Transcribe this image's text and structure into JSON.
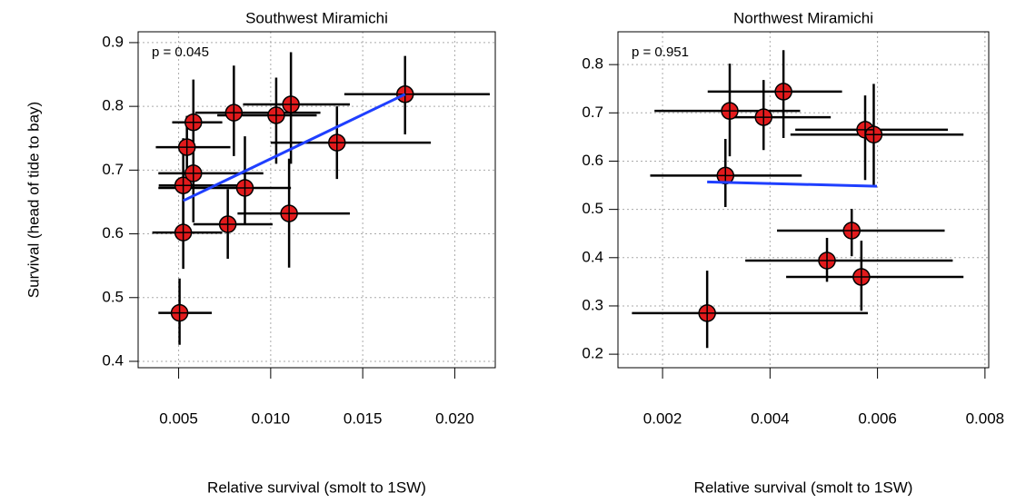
{
  "chart_data": [
    {
      "type": "scatter",
      "title": "Southwest Miramichi",
      "annotation": "p = 0.045",
      "xlabel": "Relative survival (smolt to 1SW)",
      "ylabel": "Survival (head of tide to bay)",
      "x": [
        0.00505,
        0.00525,
        0.00525,
        0.00545,
        0.0058,
        0.0058,
        0.00767,
        0.0086,
        0.008,
        0.0103,
        0.0111,
        0.011,
        0.0136,
        0.0173
      ],
      "y": [
        0.476,
        0.602,
        0.676,
        0.736,
        0.695,
        0.775,
        0.615,
        0.672,
        0.79,
        0.786,
        0.803,
        0.632,
        0.743,
        0.819
      ],
      "x_lower": [
        0.0039,
        0.00357,
        0.00392,
        0.00376,
        0.0039,
        0.00465,
        0.0058,
        0.0039,
        0.0059,
        0.0071,
        0.0085,
        0.0082,
        0.01,
        0.014
      ],
      "x_upper": [
        0.0068,
        0.00737,
        0.00837,
        0.00781,
        0.0096,
        0.00737,
        0.0101,
        0.0111,
        0.0127,
        0.0125,
        0.0143,
        0.0143,
        0.0187,
        0.0219
      ],
      "y_lower": [
        0.426,
        0.545,
        0.6,
        0.689,
        0.618,
        0.703,
        0.561,
        0.615,
        0.722,
        0.71,
        0.71,
        0.547,
        0.686,
        0.756
      ],
      "y_upper": [
        0.53,
        0.654,
        0.75,
        0.785,
        0.765,
        0.842,
        0.67,
        0.753,
        0.864,
        0.845,
        0.885,
        0.718,
        0.8,
        0.879
      ],
      "color": "#e31a1c",
      "fit_line": {
        "x": [
          0.00525,
          0.0173
        ],
        "y": [
          0.652,
          0.819
        ],
        "color": "#1f3fff"
      },
      "xlim": [
        0.0028,
        0.0222
      ],
      "ylim": [
        0.39,
        0.917
      ],
      "xticks": [
        {
          "value": 0.005,
          "label": "0.005"
        },
        {
          "value": 0.01,
          "label": "0.010"
        },
        {
          "value": 0.015,
          "label": "0.015"
        },
        {
          "value": 0.02,
          "label": "0.020"
        }
      ],
      "yticks": [
        0.4,
        0.5,
        0.6,
        0.7,
        0.8,
        0.9
      ],
      "grid": true
    },
    {
      "type": "scatter",
      "title": "Northwest Miramichi",
      "annotation": "p = 0.951",
      "xlabel": "Relative survival (smolt to 1SW)",
      "x": [
        0.00283,
        0.00317,
        0.00325,
        0.00388,
        0.00425,
        0.00577,
        0.00593,
        0.00552,
        0.00506,
        0.0057
      ],
      "y": [
        0.285,
        0.57,
        0.704,
        0.691,
        0.744,
        0.665,
        0.655,
        0.456,
        0.394,
        0.36
      ],
      "x_lower": [
        0.00143,
        0.00177,
        0.00185,
        0.00319,
        0.00284,
        0.00447,
        0.00438,
        0.00413,
        0.00354,
        0.0043
      ],
      "x_upper": [
        0.00582,
        0.00459,
        0.00456,
        0.00513,
        0.00534,
        0.00731,
        0.0076,
        0.00725,
        0.0074,
        0.0076
      ],
      "y_lower": [
        0.213,
        0.505,
        0.61,
        0.623,
        0.648,
        0.561,
        0.548,
        0.403,
        0.35,
        0.29
      ],
      "y_upper": [
        0.373,
        0.646,
        0.802,
        0.768,
        0.83,
        0.736,
        0.76,
        0.501,
        0.441,
        0.435
      ],
      "color": "#e31a1c",
      "fit_line": {
        "x": [
          0.00283,
          0.00599
        ],
        "y": [
          0.557,
          0.548
        ],
        "color": "#1f3fff"
      },
      "xlim": [
        0.00117,
        0.00807
      ],
      "ylim": [
        0.172,
        0.868
      ],
      "xticks": [
        0.002,
        0.004,
        0.006,
        0.008
      ],
      "yticks": [
        0.2,
        0.3,
        0.4,
        0.5,
        0.6,
        0.7,
        0.8
      ],
      "grid": true
    }
  ]
}
